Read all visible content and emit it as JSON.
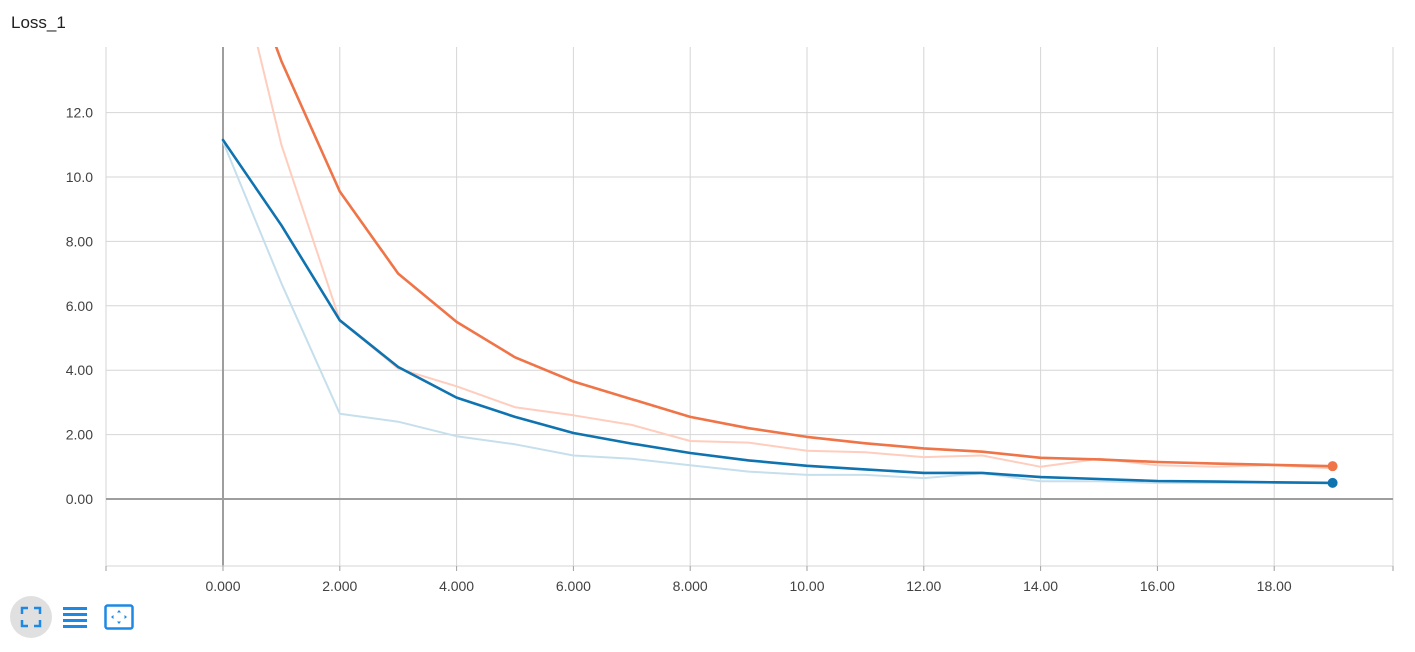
{
  "title": "Loss_1",
  "toolbar": {
    "buttons": [
      {
        "icon": "expand-icon",
        "active": true
      },
      {
        "icon": "list-icon",
        "active": false
      },
      {
        "icon": "fit-domain-icon",
        "active": false
      }
    ],
    "icon_color": "#1e88e5"
  },
  "chart_data": {
    "type": "line",
    "title": "Loss_1",
    "xlabel": "",
    "ylabel": "",
    "xlim": [
      -2,
      20.0
    ],
    "ylim": [
      -2,
      14
    ],
    "grid": true,
    "x_ticks": [
      0,
      2,
      4,
      6,
      8,
      10,
      12,
      14,
      16,
      18
    ],
    "x_tick_labels": [
      "0.000",
      "2.000",
      "4.000",
      "6.000",
      "8.000",
      "10.00",
      "12.00",
      "14.00",
      "16.00",
      "18.00"
    ],
    "y_ticks": [
      0,
      2,
      4,
      6,
      8,
      10,
      12
    ],
    "y_tick_labels": [
      "0.00",
      "2.00",
      "4.00",
      "6.00",
      "8.00",
      "10.0",
      "12.0"
    ],
    "series": [
      {
        "role": "raw",
        "color": "#ffcdbd",
        "x": [
          0,
          1,
          2,
          3,
          4,
          5,
          6,
          7,
          8,
          9,
          10,
          11,
          12,
          13,
          14,
          15,
          16,
          17,
          18,
          19
        ],
        "y": [
          18.5,
          11.0,
          5.55,
          4.05,
          3.5,
          2.85,
          2.6,
          2.3,
          1.8,
          1.75,
          1.5,
          1.45,
          1.3,
          1.35,
          1.0,
          1.25,
          1.05,
          1.0,
          1.05,
          0.95
        ]
      },
      {
        "role": "smoothed",
        "color": "#ef7447",
        "x": [
          0,
          1,
          2,
          3,
          4,
          5,
          6,
          7,
          8,
          9,
          10,
          11,
          12,
          13,
          14,
          15,
          16,
          17,
          18,
          19
        ],
        "y": [
          18.5,
          13.6,
          9.55,
          7.0,
          5.5,
          4.4,
          3.65,
          3.1,
          2.55,
          2.2,
          1.93,
          1.73,
          1.57,
          1.47,
          1.28,
          1.23,
          1.15,
          1.1,
          1.06,
          1.02
        ]
      },
      {
        "role": "raw",
        "color": "#c6dfec",
        "x": [
          0,
          1,
          2,
          3,
          4,
          5,
          6,
          7,
          8,
          9,
          10,
          11,
          12,
          13,
          14,
          15,
          16,
          17,
          18,
          19
        ],
        "y": [
          11.1,
          6.7,
          2.65,
          2.4,
          1.95,
          1.7,
          1.35,
          1.25,
          1.05,
          0.85,
          0.75,
          0.75,
          0.65,
          0.8,
          0.55,
          0.55,
          0.5,
          0.5,
          0.5,
          0.5
        ]
      },
      {
        "role": "smoothed",
        "color": "#0f73b0",
        "x": [
          0,
          1,
          2,
          3,
          4,
          5,
          6,
          7,
          8,
          9,
          10,
          11,
          12,
          13,
          14,
          15,
          16,
          17,
          18,
          19
        ],
        "y": [
          11.15,
          8.5,
          5.55,
          4.1,
          3.15,
          2.55,
          2.05,
          1.72,
          1.43,
          1.2,
          1.03,
          0.92,
          0.81,
          0.81,
          0.68,
          0.62,
          0.56,
          0.54,
          0.52,
          0.5
        ]
      }
    ]
  }
}
